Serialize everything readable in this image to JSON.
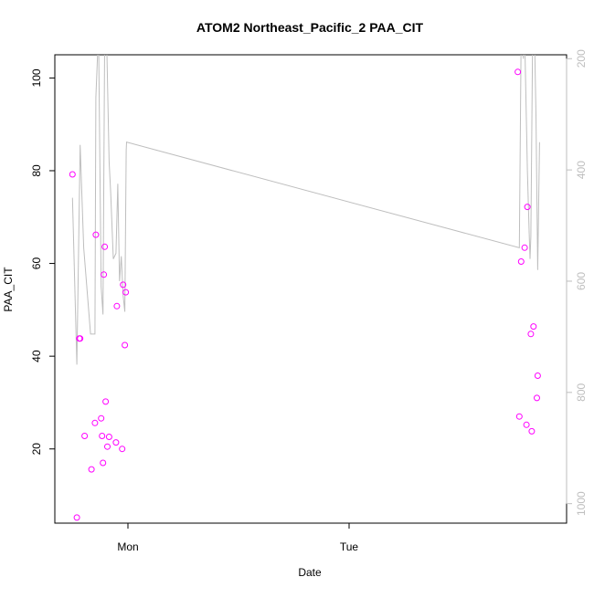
{
  "chart_data": {
    "type": "scatter",
    "title": "ATOM2 Northeast_Pacific_2 PAA_CIT",
    "xlabel": "Date",
    "ylabel": "PAA_CIT",
    "x_ticks": [
      "Mon",
      "Tue"
    ],
    "ylim": [
      4.0,
      105.0
    ],
    "y_ticks": [
      20,
      40,
      60,
      80,
      100
    ],
    "y2lim": [
      1035,
      193
    ],
    "y2_ticks": [
      200,
      400,
      600,
      800,
      1000
    ],
    "grid": false,
    "legend": "none",
    "colors": {
      "points": "#ff00ff",
      "profile_line": "#bebebe",
      "axis": "#000000",
      "right_axis": "#bebebe"
    },
    "series": [
      {
        "kind": "points",
        "axis": "left",
        "x": [
          -0.251,
          -0.231,
          -0.22,
          -0.216,
          -0.196,
          -0.165,
          -0.149,
          -0.145,
          -0.121,
          -0.117,
          -0.113,
          -0.109,
          -0.105,
          -0.101,
          -0.093,
          -0.085,
          -0.054,
          -0.05,
          -0.026,
          -0.022,
          -0.014,
          -0.01,
          1.763,
          1.77,
          1.778,
          1.794,
          1.802,
          1.806,
          1.822,
          1.826,
          1.834,
          1.849,
          1.853
        ],
        "y": [
          79.2,
          5.2,
          43.8,
          43.8,
          22.8,
          15.6,
          25.6,
          66.2,
          26.6,
          22.8,
          17.0,
          57.6,
          63.6,
          30.2,
          20.5,
          22.6,
          21.4,
          50.8,
          20.0,
          55.4,
          42.4,
          53.8,
          101.3,
          27.0,
          60.4,
          63.4,
          25.2,
          72.2,
          44.8,
          23.8,
          46.4,
          31.0,
          35.8
        ]
      },
      {
        "kind": "line",
        "axis": "right",
        "x": [
          -0.251,
          -0.231,
          -0.216,
          -0.2,
          -0.169,
          -0.149,
          -0.145,
          -0.133,
          -0.121,
          -0.113,
          -0.105,
          -0.097,
          -0.085,
          -0.078,
          -0.066,
          -0.054,
          -0.046,
          -0.038,
          -0.03,
          -0.022,
          -0.014,
          -0.008,
          -0.006,
          1.77,
          1.778,
          1.782,
          1.788,
          1.794,
          1.806,
          1.814,
          1.818,
          1.822,
          1.83,
          1.838,
          1.845,
          1.853,
          1.861
        ],
        "y": [
          450,
          750,
          355,
          540,
          695,
          695,
          270,
          150,
          610,
          660,
          150,
          150,
          385,
          440,
          560,
          550,
          425,
          600,
          555,
          625,
          655,
          365,
          350,
          540,
          155,
          155,
          200,
          155,
          400,
          510,
          560,
          520,
          150,
          150,
          300,
          580,
          350
        ]
      }
    ]
  }
}
